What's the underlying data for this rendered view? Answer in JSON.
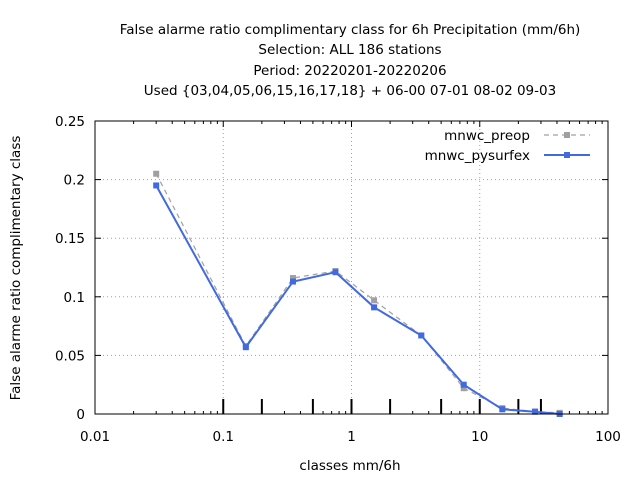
{
  "chart_data": {
    "type": "line",
    "title_lines": [
      "False alarme ratio complimentary class  for 6h Precipitation (mm/6h)",
      "Selection: ALL    186 stations",
      "Period: 20220201-20220206",
      "Used {03,04,05,06,15,16,17,18} + 06-00 07-01 08-02 09-03"
    ],
    "xlabel": "classes mm/6h",
    "ylabel": "False alarme ratio complimentary class",
    "x_scale": "log",
    "xlim": [
      0.01,
      100
    ],
    "ylim": [
      0,
      0.25
    ],
    "x_ticks": [
      0.01,
      0.1,
      1,
      10,
      100
    ],
    "x_tick_labels": [
      "0.01",
      "0.1",
      "1",
      "10",
      "100"
    ],
    "y_ticks": [
      0,
      0.05,
      0.1,
      0.15,
      0.2,
      0.25
    ],
    "y_tick_labels": [
      "0",
      "0.05",
      "0.1",
      "0.15",
      "0.2",
      "0.25"
    ],
    "grid": true,
    "legend_position": "top-right",
    "class_boundary_markers": [
      0.1,
      0.2,
      0.5,
      1,
      2,
      5,
      10,
      20,
      30
    ],
    "series": [
      {
        "name": "mnwc_preop",
        "color": "#a0a0a0",
        "style": "dashed",
        "x": [
          0.03,
          0.15,
          0.35,
          0.75,
          1.5,
          3.5,
          7.5,
          15,
          27,
          42
        ],
        "y": [
          0.205,
          0.058,
          0.116,
          0.122,
          0.097,
          0.067,
          0.022,
          0.005,
          0.002,
          0.001
        ]
      },
      {
        "name": "mnwc_pysurfex",
        "color": "#4169e1",
        "style": "solid",
        "x": [
          0.03,
          0.15,
          0.35,
          0.75,
          1.5,
          3.5,
          7.5,
          15,
          27,
          42
        ],
        "y": [
          0.195,
          0.057,
          0.113,
          0.121,
          0.091,
          0.067,
          0.025,
          0.004,
          0.002,
          0.0
        ]
      }
    ]
  }
}
